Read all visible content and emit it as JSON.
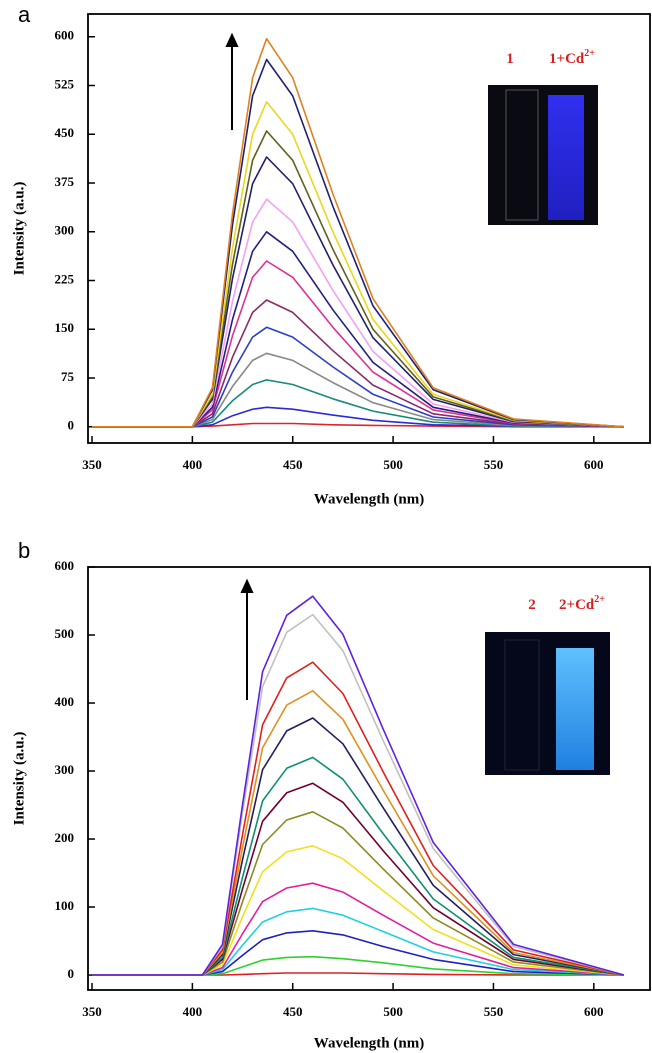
{
  "chart_data": [
    {
      "type": "line",
      "panel_label": "a",
      "xlabel": "Wavelength (nm)",
      "ylabel": "Intensity (a.u.)",
      "inset_labels": [
        {
          "text": "1"
        },
        {
          "text": "1+Cd",
          "sup": "2+"
        }
      ],
      "xlim": [
        348,
        628
      ],
      "ylim": [
        -25,
        635
      ],
      "xticks": [
        350,
        400,
        450,
        500,
        550,
        600
      ],
      "yticks": [
        0,
        75,
        150,
        225,
        300,
        375,
        450,
        525,
        600
      ],
      "x": [
        350,
        400,
        410,
        420,
        430,
        437,
        450,
        470,
        490,
        520,
        560,
        615
      ],
      "series": [
        {
          "color": "#e0242b",
          "values": [
            0,
            0,
            1,
            3,
            5,
            5,
            5,
            3,
            2,
            1,
            0,
            0
          ]
        },
        {
          "color": "#2a2ad8",
          "values": [
            0,
            0,
            3,
            17,
            27,
            30,
            27,
            18,
            10,
            3,
            1,
            0
          ]
        },
        {
          "color": "#1a8a7a",
          "values": [
            0,
            0,
            7,
            40,
            65,
            72,
            65,
            43,
            24,
            7,
            1,
            0
          ]
        },
        {
          "color": "#888888",
          "values": [
            0,
            0,
            11,
            62,
            102,
            113,
            102,
            68,
            37,
            11,
            2,
            0
          ]
        },
        {
          "color": "#2a3ec8",
          "values": [
            0,
            0,
            15,
            84,
            138,
            153,
            138,
            92,
            50,
            15,
            3,
            0
          ]
        },
        {
          "color": "#8a2a6a",
          "values": [
            0,
            0,
            20,
            107,
            176,
            195,
            176,
            117,
            64,
            20,
            4,
            0
          ]
        },
        {
          "color": "#e03090",
          "values": [
            0,
            0,
            26,
            140,
            230,
            255,
            230,
            153,
            84,
            26,
            5,
            0
          ]
        },
        {
          "color": "#202080",
          "values": [
            0,
            0,
            30,
            165,
            270,
            300,
            270,
            180,
            99,
            30,
            6,
            0
          ]
        },
        {
          "color": "#f5a0f0",
          "values": [
            0,
            0,
            35,
            193,
            315,
            350,
            315,
            210,
            116,
            35,
            7,
            0
          ]
        },
        {
          "color": "#20206e",
          "values": [
            0,
            0,
            42,
            228,
            374,
            415,
            374,
            249,
            137,
            42,
            8,
            0
          ]
        },
        {
          "color": "#606020",
          "values": [
            0,
            0,
            46,
            250,
            410,
            455,
            410,
            273,
            150,
            46,
            9,
            0
          ]
        },
        {
          "color": "#e8d820",
          "values": [
            0,
            0,
            50,
            275,
            450,
            500,
            450,
            300,
            165,
            50,
            10,
            0
          ]
        },
        {
          "color": "#202070",
          "values": [
            0,
            0,
            57,
            311,
            509,
            565,
            509,
            339,
            186,
            57,
            11,
            0
          ]
        },
        {
          "color": "#e08020",
          "values": [
            0,
            0,
            60,
            328,
            537,
            597,
            537,
            358,
            197,
            60,
            12,
            0
          ]
        }
      ]
    },
    {
      "type": "line",
      "panel_label": "b",
      "xlabel": "Wavelength (nm)",
      "ylabel": "Intensity (a.u.)",
      "inset_labels": [
        {
          "text": "2"
        },
        {
          "text": "2+Cd",
          "sup": "2+"
        }
      ],
      "xlim": [
        348,
        628
      ],
      "ylim": [
        -22,
        600
      ],
      "xticks": [
        350,
        400,
        450,
        500,
        550,
        600
      ],
      "yticks": [
        0,
        100,
        200,
        300,
        400,
        500,
        600
      ],
      "x": [
        350,
        405,
        415,
        425,
        435,
        447,
        460,
        475,
        495,
        520,
        560,
        615
      ],
      "series": [
        {
          "color": "#e02020",
          "values": [
            0,
            0,
            0,
            1,
            2,
            3,
            3,
            3,
            2,
            1,
            0,
            0
          ]
        },
        {
          "color": "#30d030",
          "values": [
            0,
            0,
            2,
            12,
            22,
            26,
            27,
            24,
            18,
            9,
            2,
            0
          ]
        },
        {
          "color": "#2020c0",
          "values": [
            0,
            0,
            5,
            29,
            52,
            62,
            65,
            59,
            42,
            23,
            5,
            0
          ]
        },
        {
          "color": "#20d0e0",
          "values": [
            0,
            0,
            8,
            44,
            78,
            93,
            98,
            88,
            64,
            34,
            8,
            0
          ]
        },
        {
          "color": "#e020a0",
          "values": [
            0,
            0,
            11,
            61,
            108,
            128,
            135,
            122,
            88,
            47,
            11,
            0
          ]
        },
        {
          "color": "#f0e020",
          "values": [
            0,
            0,
            15,
            86,
            152,
            181,
            190,
            171,
            124,
            67,
            15,
            0
          ]
        },
        {
          "color": "#8a8a20",
          "values": [
            0,
            0,
            19,
            108,
            192,
            228,
            240,
            216,
            156,
            84,
            19,
            0
          ]
        },
        {
          "color": "#700030",
          "values": [
            0,
            0,
            23,
            127,
            226,
            268,
            282,
            254,
            183,
            99,
            23,
            0
          ]
        },
        {
          "color": "#109070",
          "values": [
            0,
            0,
            26,
            144,
            256,
            304,
            320,
            288,
            208,
            112,
            26,
            0
          ]
        },
        {
          "color": "#202060",
          "values": [
            0,
            0,
            30,
            170,
            302,
            359,
            378,
            340,
            246,
            132,
            30,
            0
          ]
        },
        {
          "color": "#e09020",
          "values": [
            0,
            0,
            33,
            188,
            334,
            397,
            418,
            376,
            272,
            146,
            33,
            0
          ]
        },
        {
          "color": "#e02020",
          "values": [
            0,
            0,
            37,
            207,
            368,
            437,
            460,
            414,
            299,
            161,
            37,
            0
          ]
        },
        {
          "color": "#c0c0c0",
          "values": [
            0,
            0,
            42,
            239,
            424,
            504,
            530,
            477,
            345,
            186,
            42,
            0
          ]
        },
        {
          "color": "#6020e0",
          "values": [
            0,
            0,
            45,
            251,
            446,
            529,
            557,
            501,
            362,
            195,
            45,
            0
          ]
        }
      ]
    }
  ]
}
